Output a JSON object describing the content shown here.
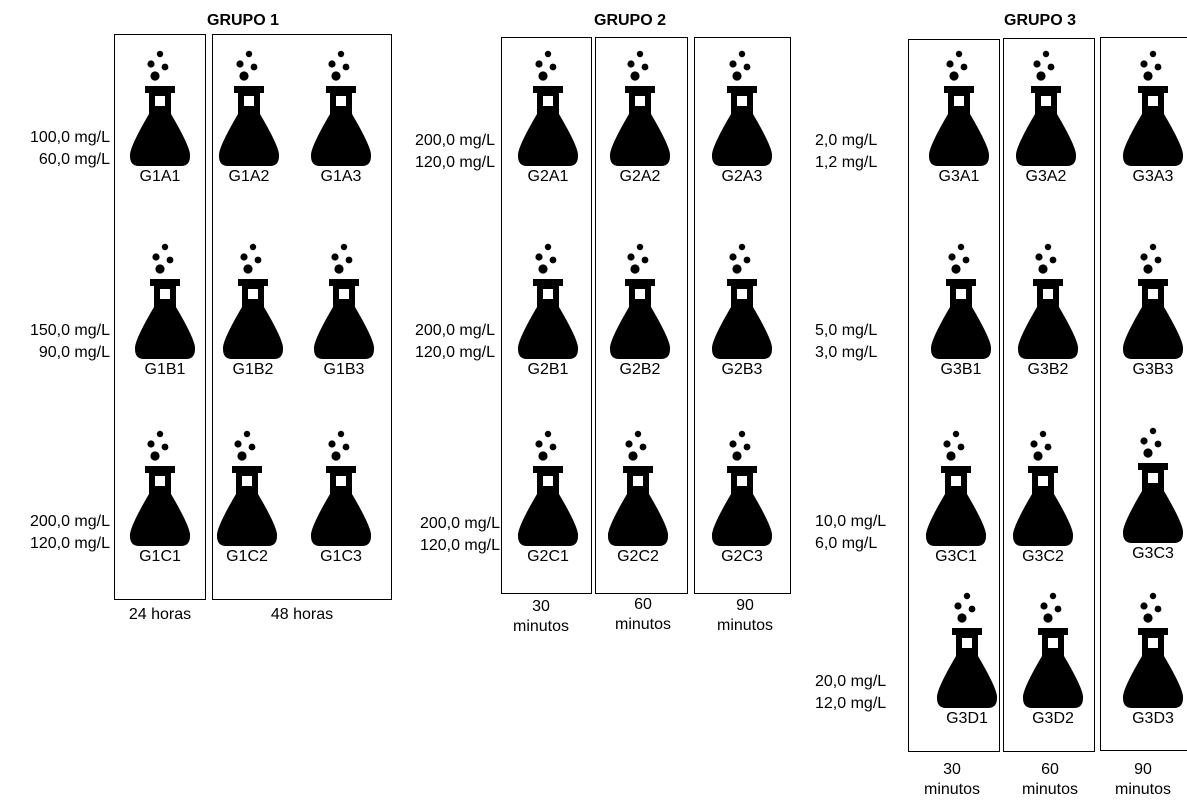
{
  "groups": [
    {
      "title": "GRUPO 1",
      "rows": [
        {
          "conc": [
            "100,0 mg/L",
            "60,0 mg/L"
          ]
        },
        {
          "conc": [
            "150,0 mg/L",
            "90,0 mg/L"
          ]
        },
        {
          "conc": [
            "200,0 mg/L",
            "120,0 mg/L"
          ]
        }
      ],
      "flasks": [
        [
          "G1A1",
          "G1A2",
          "G1A3"
        ],
        [
          "G1B1",
          "G1B2",
          "G1B3"
        ],
        [
          "G1C1",
          "G1C2",
          "G1C3"
        ]
      ],
      "times": [
        "24 horas",
        "48 horas"
      ]
    },
    {
      "title": "GRUPO 2",
      "rows": [
        {
          "conc": [
            "200,0 mg/L",
            "120,0 mg/L"
          ]
        },
        {
          "conc": [
            "200,0 mg/L",
            "120,0 mg/L"
          ]
        },
        {
          "conc": [
            "200,0 mg/L",
            "120,0 mg/L"
          ]
        }
      ],
      "flasks": [
        [
          "G2A1",
          "G2A2",
          "G2A3"
        ],
        [
          "G2B1",
          "G2B2",
          "G2B3"
        ],
        [
          "G2C1",
          "G2C2",
          "G2C3"
        ]
      ],
      "times": [
        [
          "30",
          "minutos"
        ],
        [
          "60",
          "minutos"
        ],
        [
          "90",
          "minutos"
        ]
      ]
    },
    {
      "title": "GRUPO 3",
      "rows": [
        {
          "conc": [
            "2,0 mg/L",
            "1,2 mg/L"
          ]
        },
        {
          "conc": [
            "5,0 mg/L",
            "3,0 mg/L"
          ]
        },
        {
          "conc": [
            "10,0 mg/L",
            "6,0 mg/L"
          ]
        },
        {
          "conc": [
            "20,0 mg/L",
            "12,0 mg/L"
          ]
        }
      ],
      "flasks": [
        [
          "G3A1",
          "G3A2",
          "G3A3"
        ],
        [
          "G3B1",
          "G3B2",
          "G3B3"
        ],
        [
          "G3C1",
          "G3C2",
          "G3C3"
        ],
        [
          "G3D1",
          "G3D2",
          "G3D3"
        ]
      ],
      "times": [
        [
          "30",
          "minutos"
        ],
        [
          "60",
          "minutos"
        ],
        [
          "90",
          "minutos"
        ]
      ]
    }
  ]
}
